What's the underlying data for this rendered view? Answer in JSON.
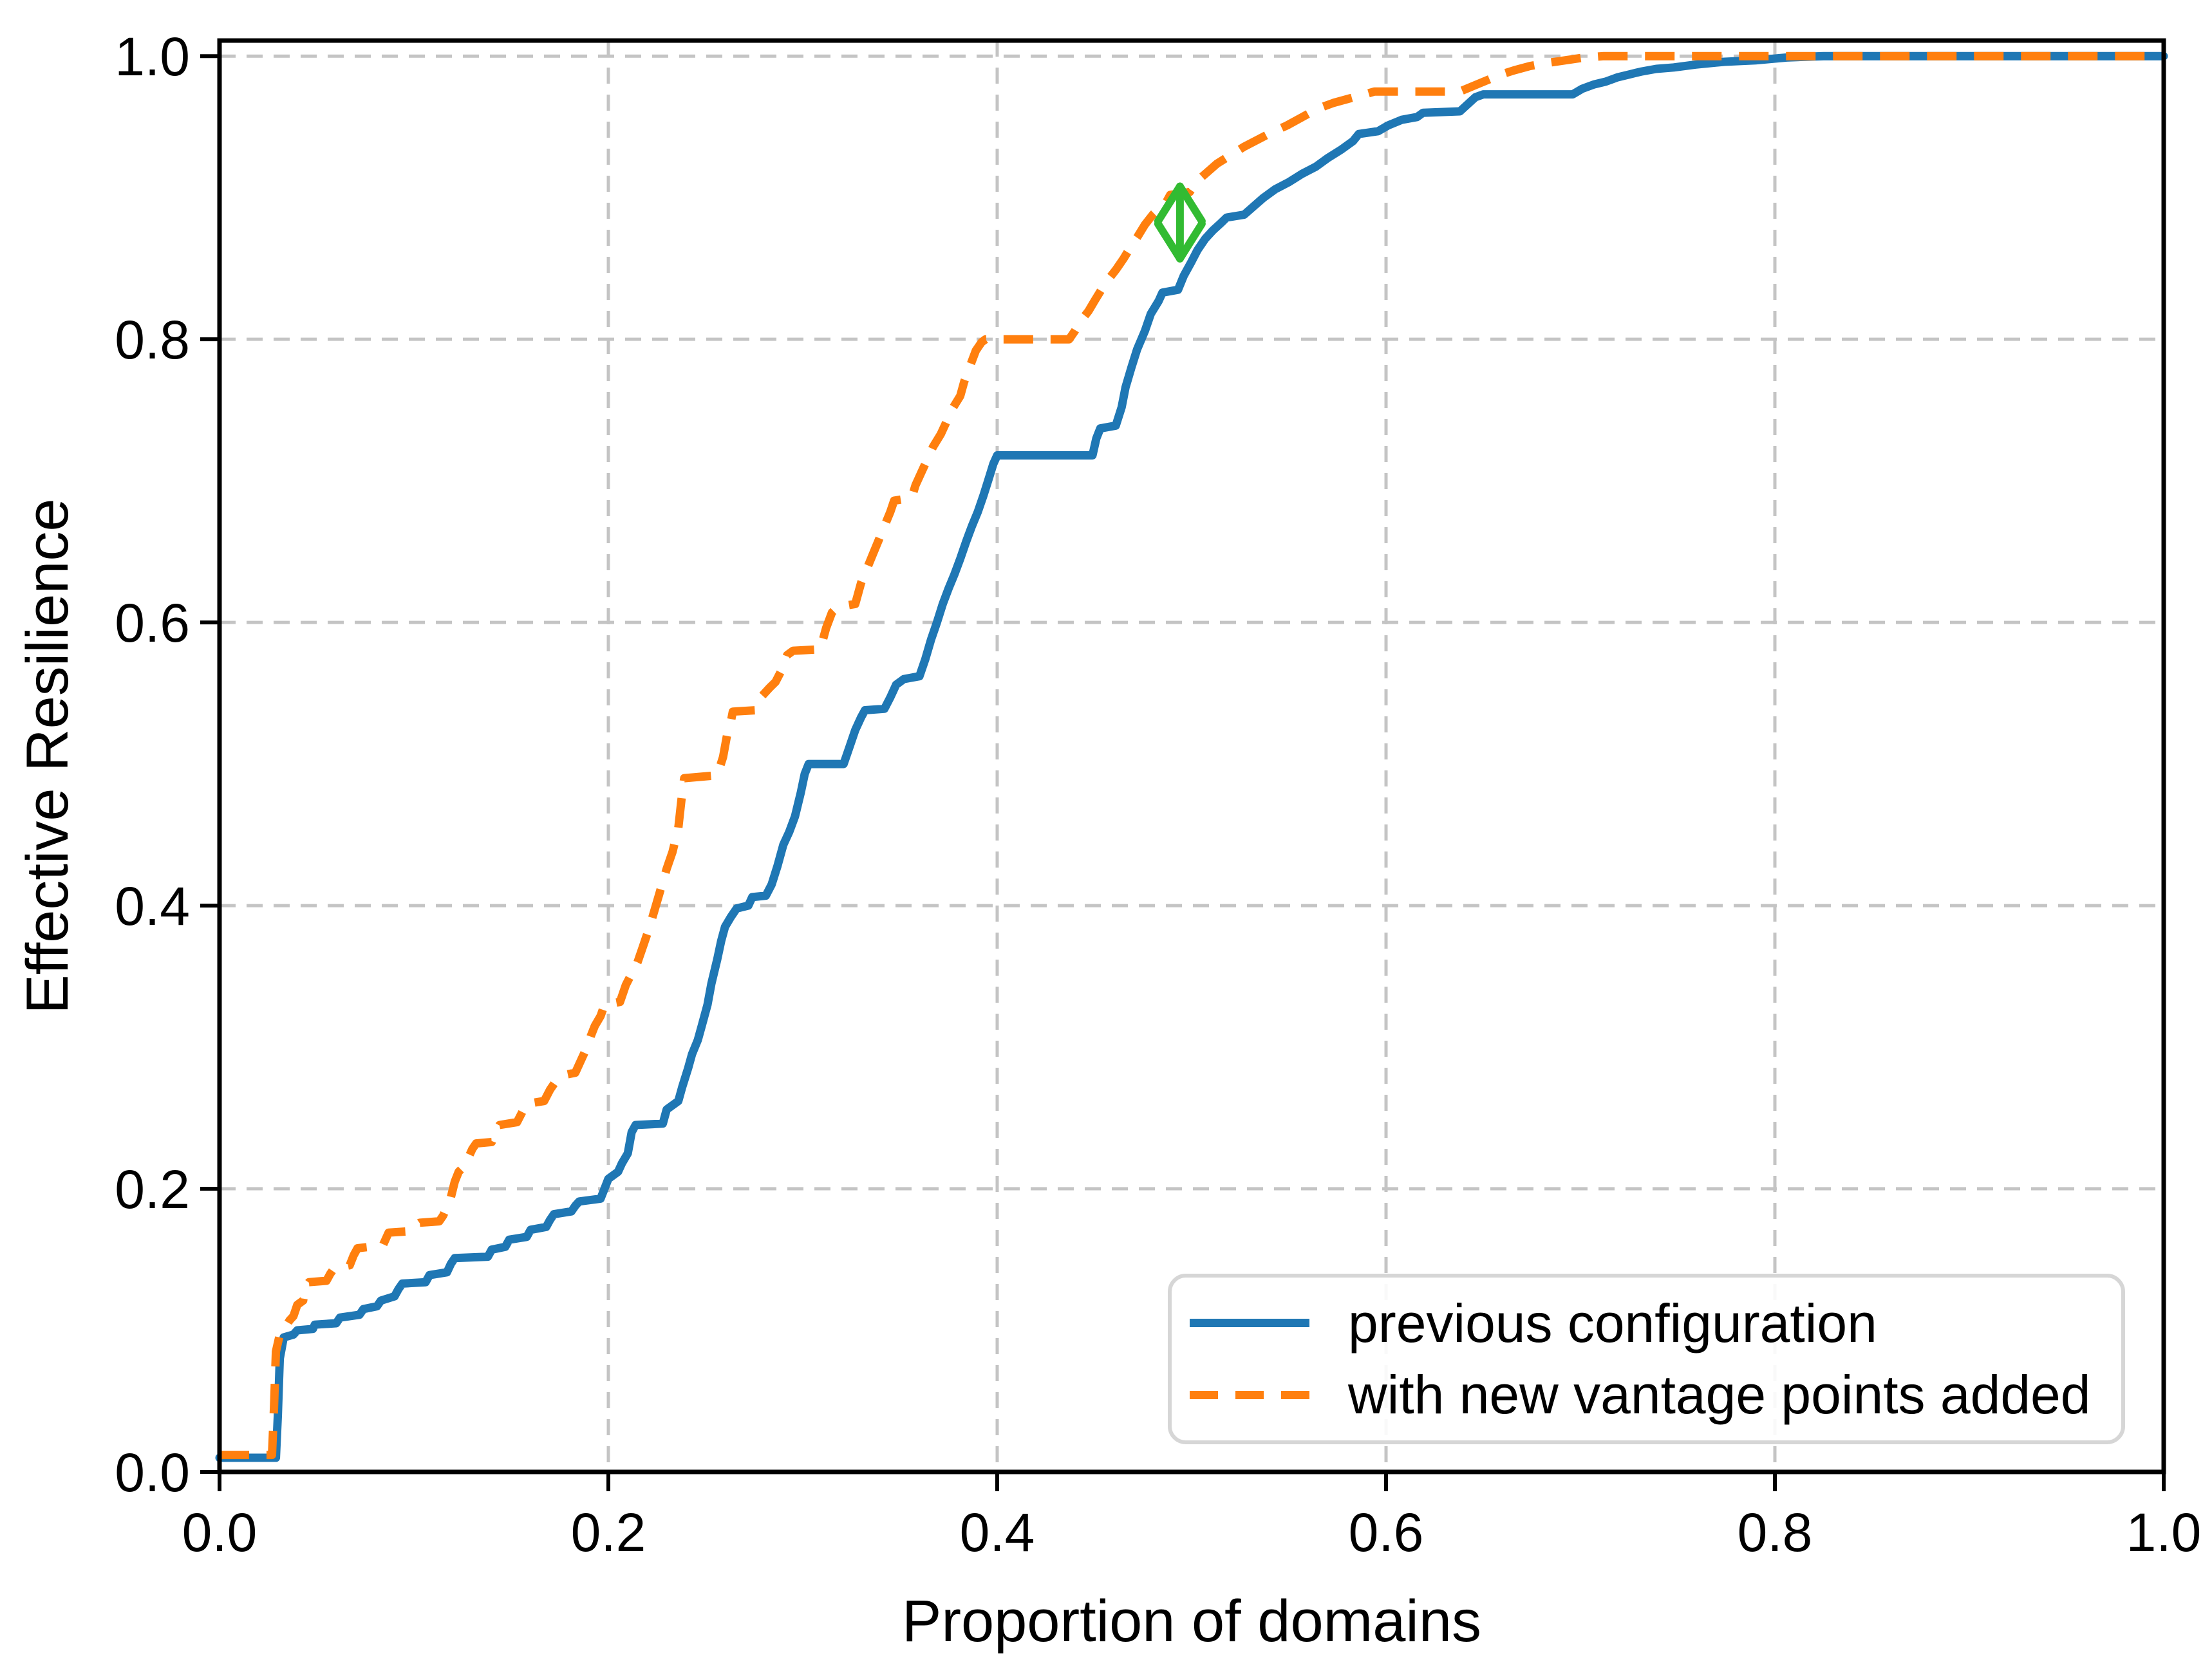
{
  "chart_data": {
    "type": "line",
    "title": "",
    "xlabel": "Proportion of domains",
    "ylabel": "Effective Resilience",
    "xlim": [
      0,
      1
    ],
    "ylim": [
      0,
      1.011
    ],
    "xticks": [
      "0.0",
      "0.2",
      "0.4",
      "0.6",
      "0.8",
      "1.0"
    ],
    "xtick_values": [
      0,
      0.2,
      0.4,
      0.6,
      0.8,
      1.0
    ],
    "yticks": [
      "0.0",
      "0.2",
      "0.4",
      "0.6",
      "0.8",
      "1.0"
    ],
    "ytick_values": [
      0,
      0.2,
      0.4,
      0.6,
      0.8,
      1.0
    ],
    "grid": true,
    "legend_position": "lower right",
    "series": [
      {
        "name": "previous configuration",
        "color": "#1f77b4",
        "style": "solid",
        "points": [
          [
            0.0,
            0.01
          ],
          [
            0.029,
            0.01
          ],
          [
            0.03,
            0.04
          ],
          [
            0.031,
            0.08
          ],
          [
            0.033,
            0.095
          ],
          [
            0.038,
            0.097
          ],
          [
            0.04,
            0.1
          ],
          [
            0.048,
            0.101
          ],
          [
            0.049,
            0.104
          ],
          [
            0.06,
            0.105
          ],
          [
            0.062,
            0.109
          ],
          [
            0.072,
            0.111
          ],
          [
            0.074,
            0.115
          ],
          [
            0.081,
            0.117
          ],
          [
            0.083,
            0.121
          ],
          [
            0.09,
            0.124
          ],
          [
            0.092,
            0.129
          ],
          [
            0.094,
            0.133
          ],
          [
            0.106,
            0.134
          ],
          [
            0.108,
            0.139
          ],
          [
            0.117,
            0.141
          ],
          [
            0.119,
            0.147
          ],
          [
            0.121,
            0.151
          ],
          [
            0.138,
            0.152
          ],
          [
            0.14,
            0.157
          ],
          [
            0.147,
            0.159
          ],
          [
            0.149,
            0.164
          ],
          [
            0.158,
            0.166
          ],
          [
            0.16,
            0.171
          ],
          [
            0.168,
            0.173
          ],
          [
            0.17,
            0.178
          ],
          [
            0.172,
            0.182
          ],
          [
            0.181,
            0.184
          ],
          [
            0.183,
            0.188
          ],
          [
            0.185,
            0.191
          ],
          [
            0.196,
            0.193
          ],
          [
            0.198,
            0.2
          ],
          [
            0.2,
            0.207
          ],
          [
            0.205,
            0.212
          ],
          [
            0.207,
            0.218
          ],
          [
            0.21,
            0.225
          ],
          [
            0.212,
            0.24
          ],
          [
            0.214,
            0.245
          ],
          [
            0.228,
            0.246
          ],
          [
            0.23,
            0.256
          ],
          [
            0.236,
            0.262
          ],
          [
            0.238,
            0.272
          ],
          [
            0.241,
            0.285
          ],
          [
            0.243,
            0.295
          ],
          [
            0.246,
            0.305
          ],
          [
            0.248,
            0.315
          ],
          [
            0.251,
            0.33
          ],
          [
            0.253,
            0.345
          ],
          [
            0.256,
            0.362
          ],
          [
            0.258,
            0.375
          ],
          [
            0.26,
            0.385
          ],
          [
            0.263,
            0.392
          ],
          [
            0.266,
            0.398
          ],
          [
            0.272,
            0.4
          ],
          [
            0.274,
            0.406
          ],
          [
            0.281,
            0.407
          ],
          [
            0.284,
            0.415
          ],
          [
            0.287,
            0.428
          ],
          [
            0.29,
            0.443
          ],
          [
            0.293,
            0.452
          ],
          [
            0.296,
            0.463
          ],
          [
            0.299,
            0.48
          ],
          [
            0.301,
            0.493
          ],
          [
            0.303,
            0.5
          ],
          [
            0.321,
            0.5
          ],
          [
            0.324,
            0.512
          ],
          [
            0.327,
            0.524
          ],
          [
            0.33,
            0.533
          ],
          [
            0.332,
            0.538
          ],
          [
            0.342,
            0.539
          ],
          [
            0.345,
            0.547
          ],
          [
            0.348,
            0.556
          ],
          [
            0.352,
            0.56
          ],
          [
            0.36,
            0.562
          ],
          [
            0.363,
            0.574
          ],
          [
            0.366,
            0.588
          ],
          [
            0.369,
            0.6
          ],
          [
            0.372,
            0.613
          ],
          [
            0.375,
            0.624
          ],
          [
            0.378,
            0.634
          ],
          [
            0.381,
            0.645
          ],
          [
            0.384,
            0.657
          ],
          [
            0.387,
            0.668
          ],
          [
            0.39,
            0.678
          ],
          [
            0.393,
            0.69
          ],
          [
            0.396,
            0.703
          ],
          [
            0.398,
            0.712
          ],
          [
            0.4,
            0.718
          ],
          [
            0.449,
            0.718
          ],
          [
            0.451,
            0.73
          ],
          [
            0.453,
            0.737
          ],
          [
            0.461,
            0.739
          ],
          [
            0.464,
            0.752
          ],
          [
            0.466,
            0.766
          ],
          [
            0.469,
            0.78
          ],
          [
            0.472,
            0.793
          ],
          [
            0.476,
            0.806
          ],
          [
            0.479,
            0.818
          ],
          [
            0.483,
            0.827
          ],
          [
            0.485,
            0.833
          ],
          [
            0.493,
            0.835
          ],
          [
            0.496,
            0.845
          ],
          [
            0.5,
            0.855
          ],
          [
            0.503,
            0.863
          ],
          [
            0.507,
            0.871
          ],
          [
            0.511,
            0.877
          ],
          [
            0.515,
            0.882
          ],
          [
            0.518,
            0.886
          ],
          [
            0.527,
            0.888
          ],
          [
            0.532,
            0.894
          ],
          [
            0.537,
            0.9
          ],
          [
            0.543,
            0.906
          ],
          [
            0.55,
            0.911
          ],
          [
            0.557,
            0.917
          ],
          [
            0.564,
            0.922
          ],
          [
            0.57,
            0.928
          ],
          [
            0.577,
            0.934
          ],
          [
            0.583,
            0.94
          ],
          [
            0.586,
            0.945
          ],
          [
            0.596,
            0.947
          ],
          [
            0.601,
            0.951
          ],
          [
            0.608,
            0.955
          ],
          [
            0.616,
            0.957
          ],
          [
            0.619,
            0.96
          ],
          [
            0.638,
            0.961
          ],
          [
            0.642,
            0.966
          ],
          [
            0.646,
            0.971
          ],
          [
            0.65,
            0.973
          ],
          [
            0.696,
            0.973
          ],
          [
            0.701,
            0.977
          ],
          [
            0.707,
            0.98
          ],
          [
            0.713,
            0.982
          ],
          [
            0.719,
            0.985
          ],
          [
            0.725,
            0.987
          ],
          [
            0.731,
            0.989
          ],
          [
            0.739,
            0.991
          ],
          [
            0.748,
            0.992
          ],
          [
            0.759,
            0.994
          ],
          [
            0.774,
            0.996
          ],
          [
            0.79,
            0.997
          ],
          [
            0.806,
            0.999
          ],
          [
            0.825,
            1.0
          ],
          [
            1.0,
            1.0
          ]
        ]
      },
      {
        "name": "with new vantage points added",
        "color": "#ff7f0e",
        "style": "dashed",
        "points": [
          [
            0.0,
            0.012
          ],
          [
            0.027,
            0.012
          ],
          [
            0.028,
            0.045
          ],
          [
            0.029,
            0.085
          ],
          [
            0.031,
            0.097
          ],
          [
            0.033,
            0.1
          ],
          [
            0.036,
            0.107
          ],
          [
            0.038,
            0.11
          ],
          [
            0.04,
            0.118
          ],
          [
            0.043,
            0.121
          ],
          [
            0.044,
            0.13
          ],
          [
            0.046,
            0.134
          ],
          [
            0.055,
            0.135
          ],
          [
            0.057,
            0.14
          ],
          [
            0.059,
            0.144
          ],
          [
            0.067,
            0.146
          ],
          [
            0.069,
            0.153
          ],
          [
            0.071,
            0.158
          ],
          [
            0.084,
            0.16
          ],
          [
            0.086,
            0.166
          ],
          [
            0.087,
            0.169
          ],
          [
            0.098,
            0.17
          ],
          [
            0.101,
            0.174
          ],
          [
            0.103,
            0.176
          ],
          [
            0.113,
            0.177
          ],
          [
            0.115,
            0.181
          ],
          [
            0.117,
            0.187
          ],
          [
            0.119,
            0.194
          ],
          [
            0.121,
            0.205
          ],
          [
            0.123,
            0.212
          ],
          [
            0.126,
            0.216
          ],
          [
            0.128,
            0.222
          ],
          [
            0.13,
            0.228
          ],
          [
            0.132,
            0.232
          ],
          [
            0.14,
            0.233
          ],
          [
            0.142,
            0.24
          ],
          [
            0.144,
            0.245
          ],
          [
            0.153,
            0.247
          ],
          [
            0.156,
            0.255
          ],
          [
            0.158,
            0.26
          ],
          [
            0.167,
            0.262
          ],
          [
            0.17,
            0.27
          ],
          [
            0.173,
            0.276
          ],
          [
            0.176,
            0.28
          ],
          [
            0.183,
            0.282
          ],
          [
            0.186,
            0.291
          ],
          [
            0.189,
            0.3
          ],
          [
            0.191,
            0.308
          ],
          [
            0.193,
            0.315
          ],
          [
            0.196,
            0.322
          ],
          [
            0.198,
            0.33
          ],
          [
            0.206,
            0.332
          ],
          [
            0.209,
            0.344
          ],
          [
            0.212,
            0.352
          ],
          [
            0.215,
            0.36
          ],
          [
            0.218,
            0.372
          ],
          [
            0.221,
            0.384
          ],
          [
            0.224,
            0.398
          ],
          [
            0.227,
            0.412
          ],
          [
            0.23,
            0.426
          ],
          [
            0.233,
            0.438
          ],
          [
            0.236,
            0.455
          ],
          [
            0.238,
            0.48
          ],
          [
            0.239,
            0.49
          ],
          [
            0.256,
            0.492
          ],
          [
            0.259,
            0.505
          ],
          [
            0.261,
            0.52
          ],
          [
            0.263,
            0.53
          ],
          [
            0.264,
            0.537
          ],
          [
            0.276,
            0.538
          ],
          [
            0.279,
            0.548
          ],
          [
            0.283,
            0.554
          ],
          [
            0.286,
            0.558
          ],
          [
            0.289,
            0.566
          ],
          [
            0.292,
            0.577
          ],
          [
            0.295,
            0.58
          ],
          [
            0.309,
            0.581
          ],
          [
            0.312,
            0.596
          ],
          [
            0.315,
            0.607
          ],
          [
            0.318,
            0.611
          ],
          [
            0.327,
            0.613
          ],
          [
            0.33,
            0.628
          ],
          [
            0.333,
            0.638
          ],
          [
            0.336,
            0.648
          ],
          [
            0.339,
            0.658
          ],
          [
            0.342,
            0.668
          ],
          [
            0.345,
            0.678
          ],
          [
            0.347,
            0.686
          ],
          [
            0.356,
            0.688
          ],
          [
            0.358,
            0.697
          ],
          [
            0.361,
            0.706
          ],
          [
            0.364,
            0.715
          ],
          [
            0.367,
            0.724
          ],
          [
            0.371,
            0.733
          ],
          [
            0.374,
            0.742
          ],
          [
            0.377,
            0.751
          ],
          [
            0.381,
            0.76
          ],
          [
            0.383,
            0.77
          ],
          [
            0.386,
            0.781
          ],
          [
            0.389,
            0.792
          ],
          [
            0.392,
            0.798
          ],
          [
            0.394,
            0.8
          ],
          [
            0.437,
            0.8
          ],
          [
            0.44,
            0.806
          ],
          [
            0.443,
            0.813
          ],
          [
            0.447,
            0.82
          ],
          [
            0.45,
            0.827
          ],
          [
            0.454,
            0.836
          ],
          [
            0.457,
            0.842
          ],
          [
            0.461,
            0.849
          ],
          [
            0.465,
            0.857
          ],
          [
            0.469,
            0.866
          ],
          [
            0.472,
            0.872
          ],
          [
            0.476,
            0.881
          ],
          [
            0.48,
            0.888
          ],
          [
            0.483,
            0.892
          ],
          [
            0.487,
            0.897
          ],
          [
            0.489,
            0.902
          ],
          [
            0.499,
            0.904
          ],
          [
            0.503,
            0.912
          ],
          [
            0.508,
            0.918
          ],
          [
            0.513,
            0.924
          ],
          [
            0.52,
            0.93
          ],
          [
            0.527,
            0.936
          ],
          [
            0.534,
            0.941
          ],
          [
            0.541,
            0.946
          ],
          [
            0.549,
            0.951
          ],
          [
            0.557,
            0.957
          ],
          [
            0.565,
            0.963
          ],
          [
            0.573,
            0.967
          ],
          [
            0.581,
            0.97
          ],
          [
            0.589,
            0.973
          ],
          [
            0.594,
            0.975
          ],
          [
            0.638,
            0.975
          ],
          [
            0.645,
            0.979
          ],
          [
            0.652,
            0.983
          ],
          [
            0.659,
            0.987
          ],
          [
            0.666,
            0.99
          ],
          [
            0.674,
            0.993
          ],
          [
            0.682,
            0.995
          ],
          [
            0.692,
            0.997
          ],
          [
            0.702,
            0.999
          ],
          [
            0.712,
            1.0
          ],
          [
            1.0,
            1.0
          ]
        ]
      }
    ],
    "annotation": {
      "type": "double-headed-arrow",
      "x": 0.494,
      "y_from": 0.857,
      "y_to": 0.908,
      "color": "#32bb32"
    }
  },
  "legend": {
    "items": [
      {
        "label": "previous configuration"
      },
      {
        "label": "with new vantage points added"
      }
    ]
  },
  "colors": {
    "background": "#ffffff",
    "grid": "#c4c4c4",
    "spine": "#000000",
    "text": "#000000",
    "series_blue": "#1f77b4",
    "series_orange": "#ff7f0e",
    "annotation_green": "#32bb32"
  }
}
